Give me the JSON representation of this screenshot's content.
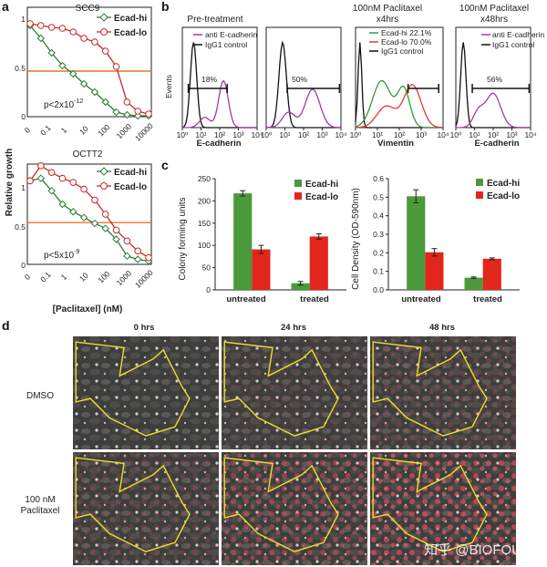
{
  "panel_labels": {
    "a": "a",
    "b": "b",
    "c": "c",
    "d": "d"
  },
  "colors": {
    "green": "#2e7d32",
    "red": "#c62828",
    "orange": "#e8742a",
    "purple": "#a33aa6",
    "black": "#111111",
    "bar_green": "#4a9a3b",
    "bar_red": "#e1261c",
    "outline_yellow": "#e9df2b"
  },
  "panel_a": {
    "ylabel": "Relative growth",
    "xlabel": "[Paclitaxel] (nM)",
    "xticks": [
      "0",
      "0.1",
      "1",
      "10",
      "100",
      "1000",
      "10000"
    ],
    "yticks": [
      "0",
      "0.5",
      "1"
    ],
    "threshold": 0.5,
    "charts": [
      {
        "title": "SCC9",
        "pvalue": "p<2x10",
        "pvalue_exp": "-12",
        "legend": [
          "Ecad-hi",
          "Ecad-lo"
        ],
        "series": [
          {
            "name": "Ecad-hi",
            "color": "green",
            "y": [
              1.0,
              0.86,
              0.7,
              0.56,
              0.47,
              0.36,
              0.27,
              0.16,
              0.05,
              0.02,
              0.01,
              0.01
            ]
          },
          {
            "name": "Ecad-lo",
            "color": "red",
            "y": [
              1.02,
              1.0,
              0.98,
              0.97,
              0.93,
              0.86,
              0.82,
              0.72,
              0.55,
              0.16,
              0.06,
              0.03
            ]
          }
        ]
      },
      {
        "title": "OCTT2",
        "pvalue": "p<5x10",
        "pvalue_exp": "-9",
        "legend": [
          "Ecad-hi",
          "Ecad-lo"
        ],
        "series": [
          {
            "name": "Ecad-hi",
            "color": "green",
            "y": [
              1.0,
              1.03,
              0.88,
              0.72,
              0.63,
              0.56,
              0.49,
              0.43,
              0.3,
              0.1,
              0.06,
              0.04
            ]
          },
          {
            "name": "Ecad-lo",
            "color": "red",
            "y": [
              1.0,
              1.18,
              1.1,
              1.03,
              0.98,
              0.9,
              0.77,
              0.6,
              0.41,
              0.28,
              0.16,
              0.08
            ]
          }
        ]
      }
    ]
  },
  "panel_b": {
    "ylabel": "Events",
    "xticks": [
      "10⁰",
      "10¹",
      "10²",
      "10³",
      "10⁴"
    ],
    "plots": [
      {
        "header": "Pre-treatment",
        "xlabel": "E-cadherin",
        "pct": "18%",
        "legend": [
          "anti E-cadherin",
          "IgG1 control"
        ]
      },
      {
        "header": "",
        "xlabel": "",
        "pct": "50%",
        "legend": []
      },
      {
        "header": "100nM Paclitaxel\nx4hrs",
        "xlabel": "Vimentin",
        "pct": "",
        "legend": [
          "Ecad-hi 22.1%",
          "Ecad-lo 70.0%",
          "IgG1 control"
        ]
      },
      {
        "header": "100nM Paclitaxel\nx48hrs",
        "xlabel": "E-cadherin",
        "pct": "56%",
        "legend": [
          "anti E-cadherin",
          "IgG1 control"
        ]
      }
    ]
  },
  "chart_data": [
    {
      "type": "bar",
      "categories": [
        "untreated",
        "treated"
      ],
      "ylabel": "Colony forming units",
      "ylim": [
        0,
        250
      ],
      "yticks": [
        0,
        50,
        100,
        150,
        200,
        250
      ],
      "series": [
        {
          "name": "Ecad-hi",
          "values": [
            217,
            15
          ],
          "err": [
            6,
            4
          ]
        },
        {
          "name": "Ecad-lo",
          "values": [
            91,
            120
          ],
          "err": [
            9,
            6
          ]
        }
      ]
    },
    {
      "type": "bar",
      "categories": [
        "untreated",
        "treated"
      ],
      "ylabel": "Cell Density (OD-590nm)",
      "ylim": [
        0,
        0.6
      ],
      "yticks": [
        0,
        0.1,
        0.2,
        0.3,
        0.4,
        0.5,
        0.6
      ],
      "series": [
        {
          "name": "Ecad-hi",
          "values": [
            0.505,
            0.066
          ],
          "err": [
            0.035,
            0.004
          ]
        },
        {
          "name": "Ecad-lo",
          "values": [
            0.203,
            0.168
          ],
          "err": [
            0.02,
            0.005
          ]
        }
      ]
    }
  ],
  "panel_d": {
    "columns": [
      "0 hrs",
      "24 hrs",
      "48 hrs"
    ],
    "rows": [
      "DMSO",
      "100 nM\nPaclitaxel"
    ],
    "watermark": "知乎 @BIOFOUNT"
  }
}
